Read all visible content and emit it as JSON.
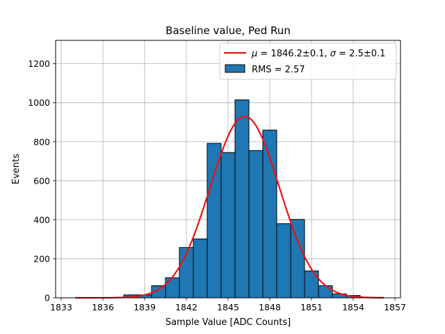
{
  "chart_data": {
    "type": "bar",
    "title": "Baseline value, Ped Run",
    "xlabel": "Sample Value [ADC Counts]",
    "ylabel": "Events",
    "xlim": [
      1832.6,
      1857.4
    ],
    "ylim": [
      0,
      1320
    ],
    "xticks": [
      1833,
      1836,
      1839,
      1842,
      1845,
      1848,
      1851,
      1854,
      1857
    ],
    "yticks": [
      0,
      200,
      400,
      600,
      800,
      1000,
      1200
    ],
    "grid": true,
    "legend_position": "top-right",
    "bar_color": "#1f77b4",
    "bins": [
      {
        "left": 1837.5,
        "right": 1838.5,
        "value": 15
      },
      {
        "left": 1838.5,
        "right": 1839.5,
        "value": 15
      },
      {
        "left": 1839.5,
        "right": 1840.5,
        "value": 62
      },
      {
        "left": 1840.5,
        "right": 1841.5,
        "value": 103
      },
      {
        "left": 1841.5,
        "right": 1842.5,
        "value": 258
      },
      {
        "left": 1842.5,
        "right": 1843.5,
        "value": 302
      },
      {
        "left": 1843.5,
        "right": 1844.5,
        "value": 792
      },
      {
        "left": 1844.5,
        "right": 1845.5,
        "value": 745
      },
      {
        "left": 1845.5,
        "right": 1846.5,
        "value": 1015
      },
      {
        "left": 1846.5,
        "right": 1847.5,
        "value": 755
      },
      {
        "left": 1847.5,
        "right": 1848.5,
        "value": 860
      },
      {
        "left": 1848.5,
        "right": 1849.5,
        "value": 380
      },
      {
        "left": 1849.5,
        "right": 1850.5,
        "value": 402
      },
      {
        "left": 1850.5,
        "right": 1851.5,
        "value": 138
      },
      {
        "left": 1851.5,
        "right": 1852.5,
        "value": 62
      },
      {
        "left": 1852.5,
        "right": 1853.5,
        "value": 20
      },
      {
        "left": 1853.5,
        "right": 1854.5,
        "value": 12
      }
    ],
    "fit": {
      "type": "gaussian",
      "mu": 1846.2,
      "sigma": 2.5,
      "amplitude": 930,
      "x_range": [
        1834,
        1856.2
      ],
      "color": "#ee1111"
    },
    "legend": {
      "fit_label": {
        "mu_sym": "μ",
        "mu_text": " = 1846.2±0.1, ",
        "sigma_sym": "σ",
        "sigma_text": " = 2.5±0.1"
      },
      "hist_label": "RMS = 2.57"
    }
  }
}
